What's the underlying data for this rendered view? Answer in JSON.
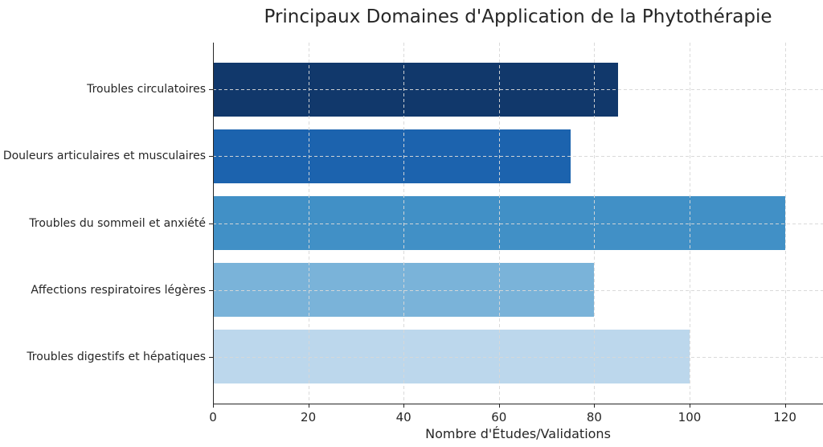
{
  "chart_data": {
    "type": "bar",
    "orientation": "horizontal",
    "title": "Principaux Domaines d'Application de la Phytothérapie",
    "xlabel": "Nombre d'Études/Validations",
    "ylabel": "",
    "categories": [
      "Troubles circulatoires",
      "Douleurs articulaires et musculaires",
      "Troubles du sommeil et anxiété",
      "Affections respiratoires légères",
      "Troubles digestifs et hépatiques"
    ],
    "values": [
      85,
      75,
      120,
      80,
      100
    ],
    "bar_colors": [
      "#11386b",
      "#1c63ae",
      "#4190c6",
      "#7ab3d9",
      "#bcd7ec"
    ],
    "xticks": [
      0,
      20,
      40,
      60,
      80,
      100,
      120
    ],
    "xlim": [
      0,
      128
    ],
    "grid": true,
    "grid_style": "dashed",
    "legend": "none",
    "axis_color": "#262626",
    "grid_color": "#d8d8d8"
  }
}
